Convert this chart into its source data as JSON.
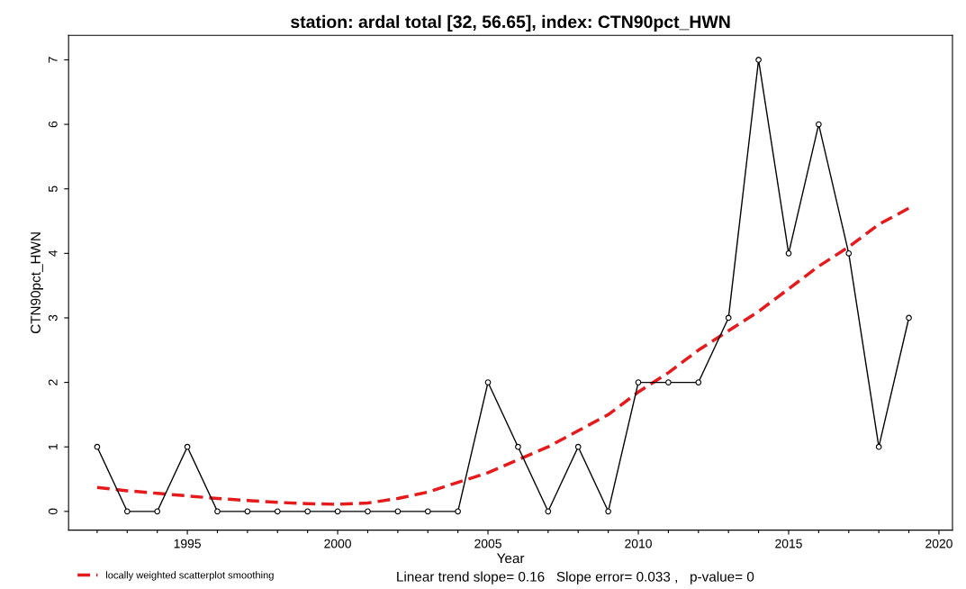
{
  "chart_data": {
    "type": "line",
    "title": "station: ardal total [32, 56.65], index: CTN90pct_HWN",
    "xlabel": "Year",
    "ylabel": "CTN90pct_HWN",
    "x": [
      1992,
      1993,
      1994,
      1995,
      1996,
      1997,
      1998,
      1999,
      2000,
      2001,
      2002,
      2003,
      2004,
      2005,
      2006,
      2007,
      2008,
      2009,
      2010,
      2011,
      2012,
      2013,
      2014,
      2015,
      2016,
      2017,
      2018,
      2019
    ],
    "series": [
      {
        "color": "#000000",
        "marker": "circle",
        "line_style": "solid",
        "values": [
          1,
          0,
          0,
          1,
          0,
          0,
          0,
          0,
          0,
          0,
          0,
          0,
          0,
          2,
          1,
          0,
          1,
          0,
          2,
          2,
          2,
          3,
          7,
          4,
          6,
          4,
          1,
          3
        ]
      },
      {
        "name": "locally weighted scatterplot smoothing",
        "color": "#e41a1c",
        "marker": "none",
        "line_style": "dashed",
        "values": [
          0.37,
          0.32,
          0.28,
          0.24,
          0.2,
          0.17,
          0.14,
          0.12,
          0.11,
          0.13,
          0.2,
          0.3,
          0.45,
          0.6,
          0.8,
          1.0,
          1.25,
          1.5,
          1.85,
          2.15,
          2.5,
          2.8,
          3.1,
          3.45,
          3.8,
          4.1,
          4.45,
          4.7
        ]
      }
    ],
    "xlim": [
      1991.05,
      2020.45
    ],
    "ylim": [
      -0.29,
      7.38
    ],
    "xticks": [
      {
        "value": 1992,
        "label": null
      },
      {
        "value": 1993,
        "label": null
      },
      {
        "value": 1994,
        "label": null
      },
      1995,
      {
        "value": 1996,
        "label": null
      },
      {
        "value": 1997,
        "label": null
      },
      {
        "value": 1998,
        "label": null
      },
      {
        "value": 1999,
        "label": null
      },
      2000,
      {
        "value": 2001,
        "label": null
      },
      {
        "value": 2002,
        "label": null
      },
      {
        "value": 2003,
        "label": null
      },
      {
        "value": 2004,
        "label": null
      },
      2005,
      {
        "value": 2006,
        "label": null
      },
      {
        "value": 2007,
        "label": null
      },
      {
        "value": 2008,
        "label": null
      },
      {
        "value": 2009,
        "label": null
      },
      2010,
      {
        "value": 2011,
        "label": null
      },
      {
        "value": 2012,
        "label": null
      },
      {
        "value": 2013,
        "label": null
      },
      {
        "value": 2014,
        "label": null
      },
      2015,
      {
        "value": 2016,
        "label": null
      },
      {
        "value": 2017,
        "label": null
      },
      {
        "value": 2018,
        "label": null
      },
      {
        "value": 2019,
        "label": null
      },
      2020
    ],
    "yticks": [
      0,
      1,
      2,
      3,
      4,
      5,
      6,
      7
    ],
    "grid": false,
    "legend": "bottom left",
    "annotations": [
      "Linear trend slope= 0.16   Slope error= 0.033 ,   p-value= 0"
    ]
  }
}
